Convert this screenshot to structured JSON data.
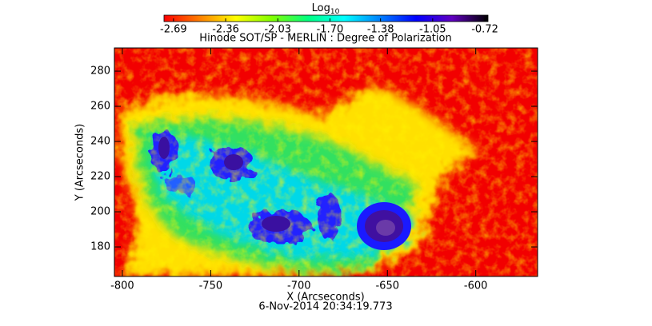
{
  "chart_data": {
    "type": "heatmap",
    "title": "Hinode SOT/SP - MERLIN : Degree of Polarization",
    "colorbar_label": "Log",
    "colorbar_label_sub": "10",
    "colorbar_ticks": [
      -2.69,
      -2.36,
      -2.03,
      {
        "value": -1.7,
        "label": "-1.70"
      },
      -1.38,
      -1.05,
      -0.72
    ],
    "colorbar_lim": [
      -2.75,
      -0.7
    ],
    "colormap": [
      "#ff0000",
      "#ff8000",
      "#ffff00",
      "#80ff00",
      "#00ff80",
      "#00ffff",
      "#0080ff",
      "#0000ff",
      "#6000c0",
      "#000000"
    ],
    "x_label": "X (Arcseconds)",
    "y_label": "Y (Arcseconds)",
    "xlim": [
      -804.5,
      -565
    ],
    "ylim": [
      163.2,
      293.2
    ],
    "xticks": [
      -800,
      -750,
      -700,
      -650,
      -600
    ],
    "yticks": [
      180,
      200,
      220,
      240,
      260,
      280
    ],
    "timestamp": "6-Nov-2014 20:34:19.773"
  }
}
